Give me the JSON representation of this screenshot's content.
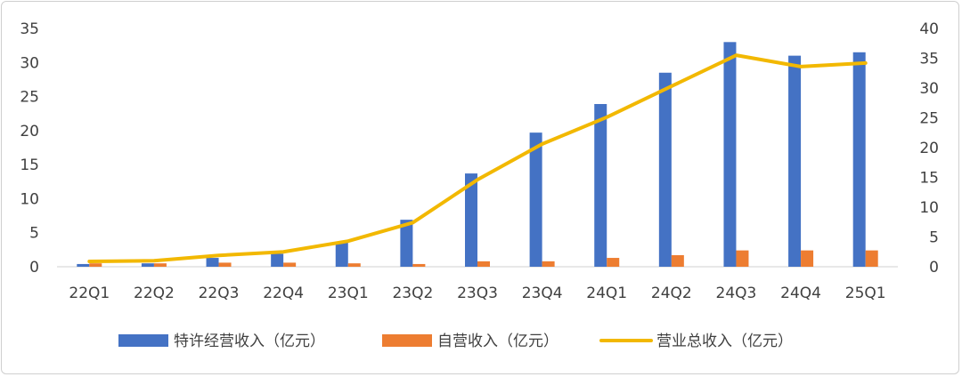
{
  "chart_data": {
    "type": "bar",
    "categories": [
      "22Q1",
      "22Q2",
      "22Q3",
      "22Q4",
      "23Q1",
      "23Q2",
      "23Q3",
      "23Q4",
      "24Q1",
      "24Q2",
      "24Q3",
      "24Q4",
      "25Q1"
    ],
    "series": [
      {
        "name": "特许经营收入（亿元）",
        "type": "bar",
        "axis": "left",
        "color": "#4472C4",
        "values": [
          0.4,
          0.5,
          1.3,
          1.9,
          3.6,
          6.9,
          13.7,
          19.7,
          23.9,
          28.5,
          33.0,
          31.0,
          31.5
        ]
      },
      {
        "name": "自营收入（亿元）",
        "type": "bar",
        "axis": "left",
        "color": "#ED7D31",
        "values": [
          0.5,
          0.5,
          0.6,
          0.6,
          0.5,
          0.4,
          0.8,
          0.8,
          1.3,
          1.7,
          2.4,
          2.4,
          2.4
        ]
      },
      {
        "name": "营业总收入（亿元）",
        "type": "line",
        "axis": "right",
        "color": "#F2B800",
        "values": [
          0.9,
          1.0,
          1.9,
          2.5,
          4.3,
          7.4,
          14.6,
          20.6,
          25.1,
          30.3,
          35.5,
          33.6,
          34.2
        ]
      }
    ],
    "y_left": {
      "min": 0,
      "max": 35,
      "step": 5
    },
    "y_right": {
      "min": 0,
      "max": 40,
      "step": 5
    },
    "legend_position": "bottom",
    "grid": false
  }
}
